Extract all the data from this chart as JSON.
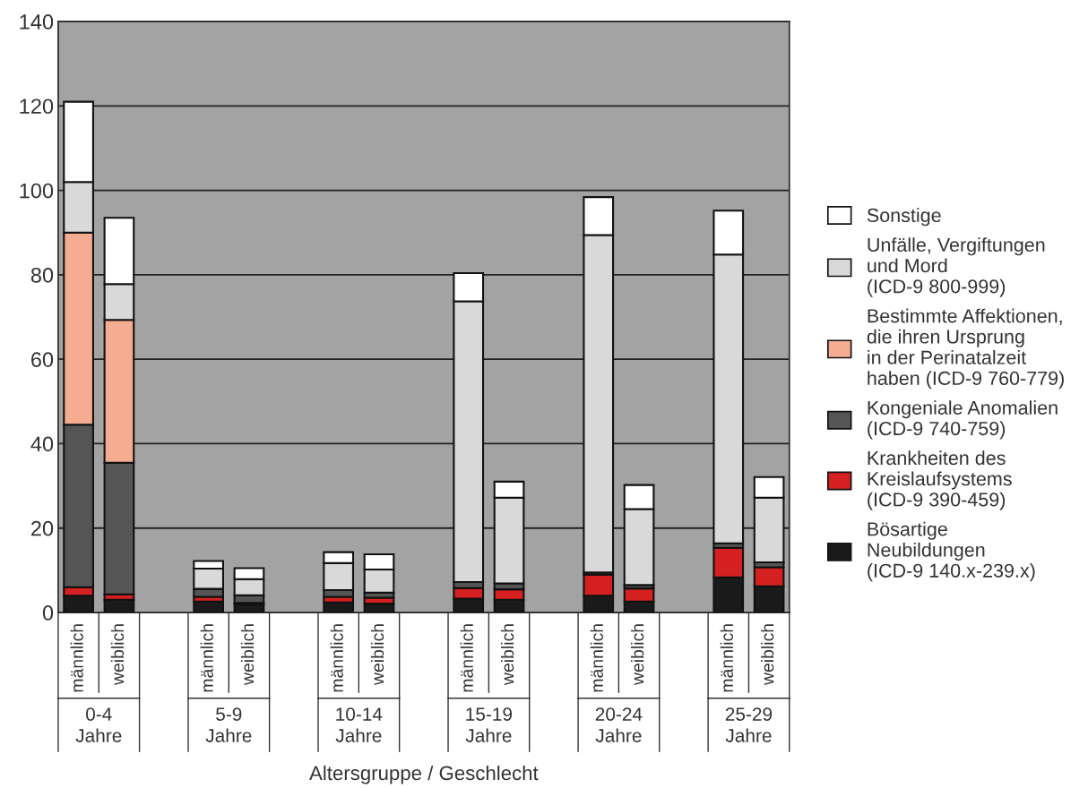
{
  "chart_data": {
    "type": "bar",
    "stacked": true,
    "xlabel": "Altersgruppe / Geschlecht",
    "categories": [
      "männlich",
      "weiblich",
      "männlich",
      "weiblich",
      "männlich",
      "weiblich",
      "männlich",
      "weiblich",
      "männlich",
      "weiblich",
      "männlich",
      "weiblich"
    ],
    "annotations": [
      "0-4\nJahre",
      "5-9\nJahre",
      "10-14\nJahre",
      "15-19\nJahre",
      "20-24\nJahre",
      "25-29\nJahre"
    ],
    "series": [
      {
        "name": "Bösartige\nNeubildungen\n(ICD-9 140.x-239.x)",
        "color": "#1a1a1a",
        "values": [
          4,
          3,
          2.6,
          2,
          2.4,
          2.1,
          3.3,
          3,
          4,
          2.6,
          8.3,
          6.2
        ]
      },
      {
        "name": "Krankheiten des\nKreislaufsystems\n(ICD-9 390-459)",
        "color": "#d42020",
        "values": [
          2,
          1.3,
          1.1,
          0.3,
          1.3,
          1.4,
          2.5,
          2.5,
          5,
          3.1,
          7,
          4.5
        ]
      },
      {
        "name": "Kongeniale Anomalien\n(ICD-9 740-759)",
        "color": "#555555",
        "values": [
          38.5,
          31.2,
          1.9,
          1.8,
          1.6,
          1.2,
          1.4,
          1.4,
          0.5,
          0.8,
          1.1,
          1.2
        ]
      },
      {
        "name": "Bestimmte Affektionen,\ndie ihren Ursprung\nin der Perinatalzeit\nhaben (ICD-9 760-779)",
        "color": "#f4ad90",
        "values": [
          45.5,
          33.8,
          null,
          null,
          null,
          null,
          null,
          null,
          null,
          null,
          null,
          null
        ]
      },
      {
        "name": "Unfälle, Vergiftungen\nund Mord\n(ICD-9 800-999)",
        "color": "#d9d9d9",
        "values": [
          12,
          8.5,
          4.8,
          3.8,
          6.4,
          5.5,
          66.5,
          20.3,
          79.9,
          18,
          68.4,
          15.3
        ]
      },
      {
        "name": "Sonstige",
        "color": "#ffffff",
        "values": [
          19,
          15.7,
          1.8,
          2.6,
          2.6,
          3.6,
          6.7,
          3.8,
          9,
          5.7,
          10.4,
          4.9
        ]
      }
    ],
    "ylim": [
      0,
      140
    ],
    "yticks": [
      0,
      20,
      40,
      60,
      80,
      100,
      120,
      140
    ],
    "grid": "y",
    "legend": "right"
  }
}
